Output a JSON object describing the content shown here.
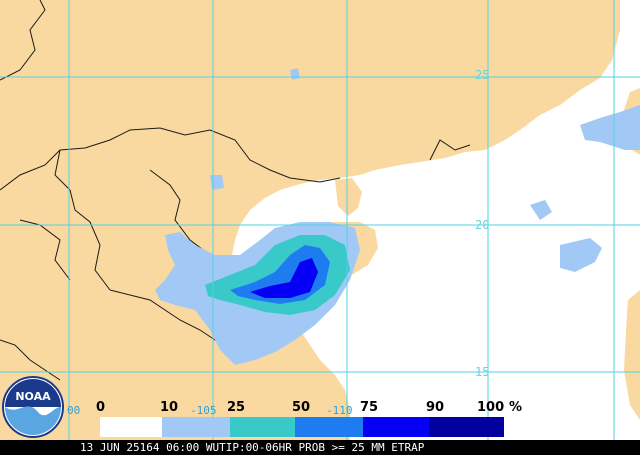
{
  "map": {
    "latitude_labels": [
      "25",
      "20",
      "15"
    ],
    "longitude_labels": [
      "-105",
      "-110"
    ],
    "left_edge_label": "00"
  },
  "legend": {
    "ticks": [
      "0",
      "10",
      "25",
      "50",
      "75",
      "90",
      "100"
    ],
    "unit": "%",
    "colors": [
      "#ffffff",
      "#a2c9f5",
      "#3ac9c9",
      "#1e7cf0",
      "#0500f5",
      "#02009e"
    ]
  },
  "caption": "13 JUN 25164 06:00 WUTIP:00-06HR PROB >= 25 MM ETRAP",
  "logo": {
    "text": "NOAA",
    "icon": "noaa-logo-icon"
  },
  "colors": {
    "land": "#fad9a0",
    "sea": "#ffffff",
    "grid": "#4fd3e3",
    "border": "#1a1a1a"
  }
}
